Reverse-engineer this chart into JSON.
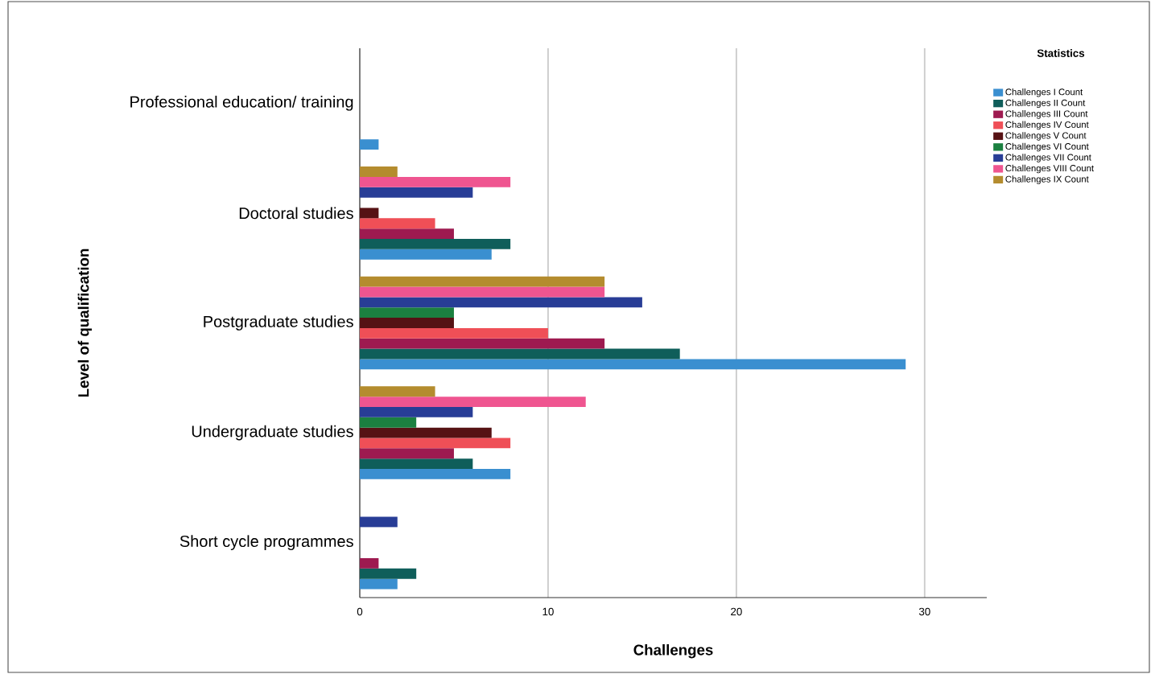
{
  "chart_data": {
    "type": "bar",
    "orientation": "horizontal",
    "xlabel": "Challenges",
    "ylabel": "Level of qualification",
    "legend_title": "Statistics",
    "categories": [
      "Professional education/ training",
      "Doctoral studies",
      "Postgraduate studies",
      "Undergraduate studies",
      "Short cycle programmes"
    ],
    "series": [
      {
        "name": "Challenges I Count",
        "color": "#3a8fd0",
        "values": [
          1,
          7,
          29,
          8,
          2
        ]
      },
      {
        "name": "Challenges II Count",
        "color": "#0f5e5a",
        "values": [
          0,
          8,
          17,
          6,
          3
        ]
      },
      {
        "name": "Challenges III Count",
        "color": "#9e1a50",
        "values": [
          0,
          5,
          13,
          5,
          1
        ]
      },
      {
        "name": "Challenges IV Count",
        "color": "#ef4f57",
        "values": [
          0,
          4,
          10,
          8,
          0
        ]
      },
      {
        "name": "Challenges V Count",
        "color": "#561214",
        "values": [
          0,
          1,
          5,
          7,
          0
        ]
      },
      {
        "name": "Challenges VI Count",
        "color": "#1b8040",
        "values": [
          0,
          0,
          5,
          3,
          0
        ]
      },
      {
        "name": "Challenges VII Count",
        "color": "#283d96",
        "values": [
          0,
          6,
          15,
          6,
          2
        ]
      },
      {
        "name": "Challenges VIII Count",
        "color": "#ef5590",
        "values": [
          0,
          8,
          13,
          12,
          0
        ]
      },
      {
        "name": "Challenges IX Count",
        "color": "#b48c2e",
        "values": [
          0,
          2,
          13,
          4,
          0
        ]
      }
    ],
    "xlim": [
      0,
      33.3
    ],
    "xticks": [
      0,
      10,
      20,
      30
    ],
    "grid": "x",
    "legend": "top right"
  }
}
